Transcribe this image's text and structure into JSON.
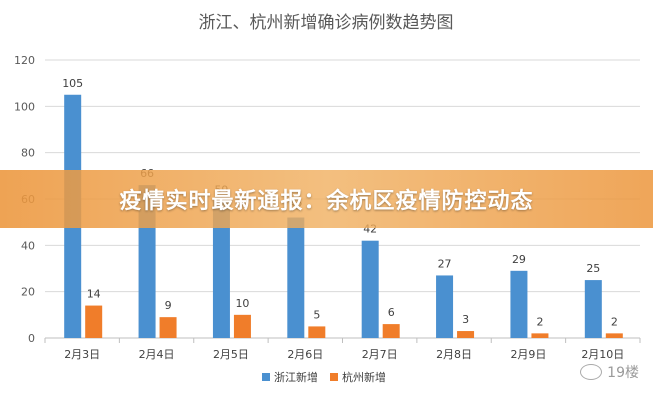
{
  "banner": {
    "text": "疫情实时最新通报：余杭区疫情防控动态"
  },
  "watermark": {
    "text": "19楼",
    "icon": "wechat-icon"
  },
  "colors": {
    "series1": "#4a90d0",
    "series2": "#f07d2a",
    "grid": "#d9d9d9",
    "axis": "#bfbfbf"
  },
  "chart_data": {
    "type": "bar",
    "title": "浙江、杭州新增确诊病例数趋势图",
    "categories": [
      "2月3日",
      "2月4日",
      "2月5日",
      "2月6日",
      "2月7日",
      "2月8日",
      "2月9日",
      "2月10日"
    ],
    "series": [
      {
        "name": "浙江新增",
        "values": [
          105,
          66,
          59,
          52,
          42,
          27,
          29,
          25
        ]
      },
      {
        "name": "杭州新增",
        "values": [
          14,
          9,
          10,
          5,
          6,
          3,
          2,
          2
        ]
      }
    ],
    "yticks": [
      0,
      20,
      40,
      60,
      80,
      100,
      120
    ],
    "ylim": [
      0,
      120
    ],
    "grid": true,
    "legend": "bottom"
  }
}
